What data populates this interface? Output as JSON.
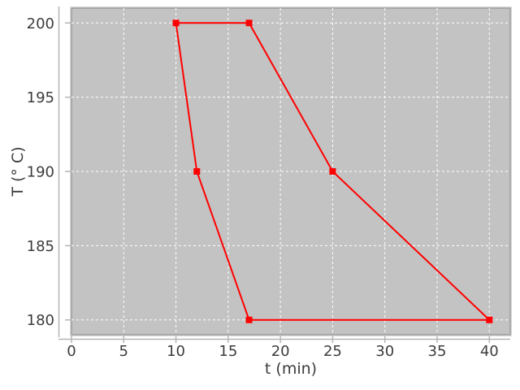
{
  "figure": {
    "background": "#ffffff"
  },
  "chart_data": {
    "type": "line",
    "title": "",
    "xlabel": "t (min)",
    "ylabel": "T (° C)",
    "xlim": [
      0,
      42
    ],
    "ylim": [
      179,
      201
    ],
    "xticks": [
      0,
      5,
      10,
      15,
      20,
      25,
      30,
      35,
      40
    ],
    "yticks": [
      180,
      185,
      190,
      195,
      200
    ],
    "grid": {
      "show": true,
      "style": "dashed",
      "color": "#ffffff"
    },
    "legend_position": "none",
    "series": [
      {
        "name": "temperature-cycle-loop",
        "color": "#ff0000",
        "marker": "filled-square",
        "marker_size": 8,
        "line_width": 2,
        "closed": true,
        "points": [
          [
            10,
            200
          ],
          [
            17,
            200
          ],
          [
            25,
            190
          ],
          [
            40,
            180
          ],
          [
            17,
            180
          ],
          [
            12,
            190
          ]
        ]
      }
    ]
  },
  "style": {
    "plot_bg": "#c3c3c3",
    "plot_border": "#999999",
    "plot_border_outer": "#d8d8d8",
    "axis_line": "#b4b4b4",
    "tick_color": "#b4b4b4",
    "label_color": "#3c3c3c"
  }
}
